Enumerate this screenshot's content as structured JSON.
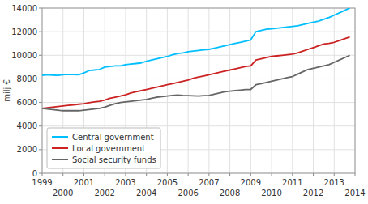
{
  "chart_data": {
    "type": "line",
    "ylabel": "milj €",
    "x": [
      1999.0,
      1999.25,
      1999.5,
      1999.75,
      2000.0,
      2000.25,
      2000.5,
      2000.75,
      2001.0,
      2001.25,
      2001.5,
      2001.75,
      2002.0,
      2002.25,
      2002.5,
      2002.75,
      2003.0,
      2003.25,
      2003.5,
      2003.75,
      2004.0,
      2004.25,
      2004.5,
      2004.75,
      2005.0,
      2005.25,
      2005.5,
      2005.75,
      2006.0,
      2006.25,
      2006.5,
      2006.75,
      2007.0,
      2007.25,
      2007.5,
      2007.75,
      2008.0,
      2008.25,
      2008.5,
      2008.75,
      2009.0,
      2009.25,
      2009.5,
      2009.75,
      2010.0,
      2010.25,
      2010.5,
      2010.75,
      2011.0,
      2011.25,
      2011.5,
      2011.75,
      2012.0,
      2012.25,
      2012.5,
      2012.75,
      2013.0,
      2013.25,
      2013.5,
      2013.75
    ],
    "series": [
      {
        "name": "Central government",
        "color": "#00bfff",
        "values": [
          8300,
          8350,
          8320,
          8300,
          8350,
          8380,
          8360,
          8340,
          8500,
          8700,
          8750,
          8800,
          9000,
          9050,
          9100,
          9100,
          9200,
          9250,
          9300,
          9350,
          9500,
          9600,
          9700,
          9800,
          9900,
          10050,
          10150,
          10200,
          10300,
          10350,
          10400,
          10450,
          10500,
          10600,
          10700,
          10800,
          10900,
          11000,
          11100,
          11200,
          11300,
          12000,
          12100,
          12200,
          12250,
          12300,
          12350,
          12400,
          12450,
          12500,
          12600,
          12700,
          12800,
          12900,
          13050,
          13200,
          13400,
          13600,
          13800,
          14000
        ]
      },
      {
        "name": "Local government",
        "color": "#cc2222",
        "values": [
          5500,
          5550,
          5600,
          5650,
          5700,
          5750,
          5800,
          5850,
          5900,
          5980,
          6050,
          6100,
          6200,
          6350,
          6450,
          6550,
          6650,
          6800,
          6900,
          7000,
          7100,
          7200,
          7300,
          7400,
          7500,
          7600,
          7700,
          7800,
          7900,
          8050,
          8150,
          8250,
          8350,
          8450,
          8550,
          8650,
          8750,
          8850,
          8950,
          9050,
          9100,
          9600,
          9700,
          9800,
          9900,
          9950,
          10000,
          10050,
          10100,
          10200,
          10350,
          10500,
          10650,
          10800,
          10950,
          11000,
          11100,
          11250,
          11400,
          11550
        ]
      },
      {
        "name": "Social security funds",
        "color": "#666666",
        "values": [
          5500,
          5450,
          5400,
          5350,
          5300,
          5300,
          5300,
          5300,
          5350,
          5400,
          5450,
          5500,
          5600,
          5750,
          5900,
          6000,
          6050,
          6100,
          6150,
          6200,
          6250,
          6350,
          6450,
          6500,
          6550,
          6600,
          6630,
          6600,
          6580,
          6560,
          6550,
          6580,
          6600,
          6700,
          6800,
          6900,
          6950,
          7000,
          7050,
          7100,
          7100,
          7500,
          7600,
          7700,
          7800,
          7900,
          8000,
          8100,
          8200,
          8400,
          8600,
          8800,
          8900,
          9000,
          9100,
          9200,
          9400,
          9600,
          9800,
          10000
        ]
      }
    ],
    "xlim": [
      1999,
      2014
    ],
    "ylim": [
      0,
      14000
    ],
    "xticks": [
      1999,
      2000,
      2001,
      2002,
      2003,
      2004,
      2005,
      2006,
      2007,
      2008,
      2009,
      2010,
      2011,
      2012,
      2013,
      2014
    ],
    "yticks": [
      0,
      2000,
      4000,
      6000,
      8000,
      10000,
      12000,
      14000
    ],
    "grid": true,
    "legend": "lower left"
  }
}
